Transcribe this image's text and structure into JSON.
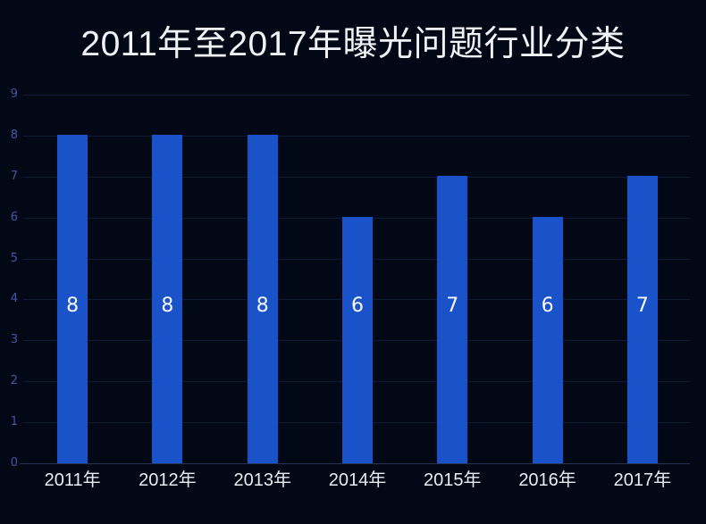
{
  "chart_data": {
    "type": "bar",
    "title": "2011年至2017年曝光问题行业分类",
    "categories": [
      "2011年",
      "2012年",
      "2013年",
      "2014年",
      "2015年",
      "2016年",
      "2017年"
    ],
    "values": [
      8,
      8,
      8,
      6,
      7,
      6,
      7
    ],
    "xlabel": "",
    "ylabel": "",
    "ylim": [
      0,
      9
    ],
    "y_ticks": [
      0,
      1,
      2,
      3,
      4,
      5,
      6,
      7,
      8,
      9
    ],
    "grid": true,
    "legend": "none",
    "value_labels": "inside, fixed height, white",
    "colors": {
      "background": "#020815",
      "bar": "#1a52ca",
      "grid_line": "#0d1b36",
      "axis_line": "#253350",
      "y_tick_label": "#4457a6",
      "x_tick_label": "#e9ecf4",
      "value_label": "#f7f9fc",
      "title": "#f1f2f6"
    }
  }
}
